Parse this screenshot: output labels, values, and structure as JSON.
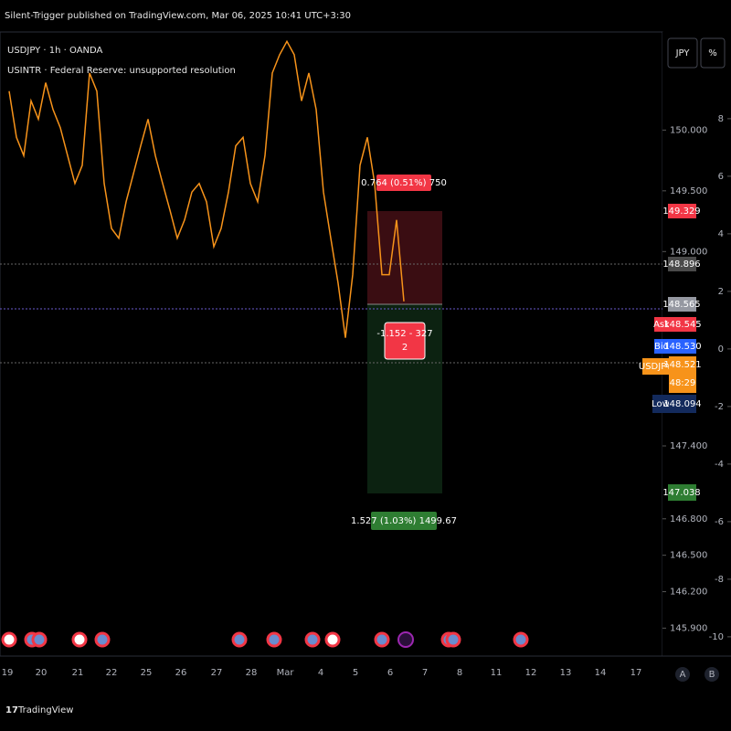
{
  "header": {
    "published": "Silent-Trigger published on TradingView.com, Mar 06, 2025 10:41 UTC+3:30"
  },
  "legend": {
    "symbol": "USDJPY · 1h · OANDA",
    "indicator": "USINTR · Federal Reserve: unsupported resolution"
  },
  "buttons": {
    "currency": "JPY",
    "percent": "%",
    "auto": "A",
    "log": "B"
  },
  "price_series": {
    "color": "#f7931a",
    "values": [
      150.32,
      149.94,
      149.79,
      150.24,
      150.09,
      150.39,
      150.17,
      150.02,
      149.79,
      149.56,
      149.71,
      150.47,
      150.32,
      149.56,
      149.19,
      149.11,
      149.41,
      149.64,
      149.87,
      150.09,
      149.79,
      149.56,
      149.34,
      149.11,
      149.26,
      149.49,
      149.56,
      149.41,
      149.04,
      149.19,
      149.49,
      149.87,
      149.94,
      149.56,
      149.41,
      149.79,
      150.47,
      150.62,
      150.73,
      150.62,
      150.24,
      150.47,
      150.17,
      149.49,
      149.11,
      148.74,
      148.29,
      148.81,
      149.71,
      149.94,
      149.56,
      148.81,
      148.81,
      149.26,
      148.59
    ]
  },
  "price_axis": {
    "ylim": [
      145.67,
      150.8
    ],
    "yticks": [
      {
        "value": 150,
        "label": "150.000"
      },
      {
        "value": 149.5,
        "label": "149.500"
      },
      {
        "value": 149,
        "label": "149.000"
      },
      {
        "value": 147.4,
        "label": "147.400"
      },
      {
        "value": 146.8,
        "label": "146.800"
      },
      {
        "value": 146.5,
        "label": "146.500"
      },
      {
        "value": 146.2,
        "label": "146.200"
      },
      {
        "value": 145.9,
        "label": "145.900"
      }
    ]
  },
  "rate_axis": {
    "y2lim": [
      -10.67,
      10.98
    ],
    "y2ticks": [
      8,
      6,
      4,
      2,
      0,
      -2,
      -4,
      -6,
      -8,
      -10
    ]
  },
  "price_tags": {
    "stop": "149.329",
    "high_line": "148.896",
    "entry": "148.565",
    "ask_label": "Ask",
    "ask": "148.545",
    "bid_label": "Bid",
    "bid": "148.530",
    "symbol_label": "USDJPY",
    "last": "148.521",
    "countdown": "48:29",
    "low_label": "Low",
    "low": "148.094",
    "target": "147.038"
  },
  "position": {
    "stop_label": "0.764 (0.51%) 750",
    "pnl_line1": "-1.152 - 327",
    "pnl_line2": "2",
    "target_label": "1.527 (1.03%) 1499.67"
  },
  "time_axis": {
    "labels": [
      "19",
      "20",
      "21",
      "22",
      "25",
      "26",
      "27",
      "28",
      "Mar",
      "4",
      "5",
      "6",
      "7",
      "8",
      "11",
      "12",
      "13",
      "14",
      "17"
    ]
  },
  "footer": {
    "brand": "TradingView"
  }
}
